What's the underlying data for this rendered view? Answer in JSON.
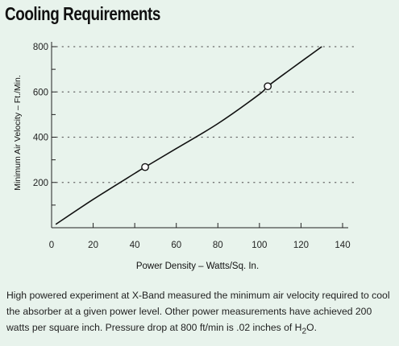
{
  "chart_data": {
    "type": "line",
    "title": "Cooling Requirements",
    "xlabel": "Power Density – Watts/Sq. In.",
    "ylabel": "Minimum Air Velocity – Ft./Min.",
    "xlim": [
      0,
      140
    ],
    "ylim": [
      0,
      800
    ],
    "x_ticks": [
      0,
      20,
      40,
      60,
      80,
      100,
      120,
      140
    ],
    "y_ticks": [
      200,
      400,
      600,
      800
    ],
    "y_minor_ticks": [
      100,
      300,
      500,
      700
    ],
    "grid": "dotted-horizontal",
    "series": [
      {
        "x": [
          2,
          20,
          40,
          45,
          60,
          80,
          100,
          104,
          115,
          130
        ],
        "y": [
          15,
          125,
          240,
          268,
          350,
          460,
          590,
          625,
          700,
          800
        ]
      }
    ],
    "markers": [
      {
        "x": 45,
        "y": 268
      },
      {
        "x": 104,
        "y": 625
      }
    ]
  },
  "caption": {
    "text_before": "High powered experiment at X-Band measured the minimum air velocity required to cool the absorber at a given power level. Other power measurements have achieved 200 watts per square inch. Pressure drop at 800 ft/min is .02 inches of H",
    "subscript": "2",
    "text_after": "O."
  }
}
